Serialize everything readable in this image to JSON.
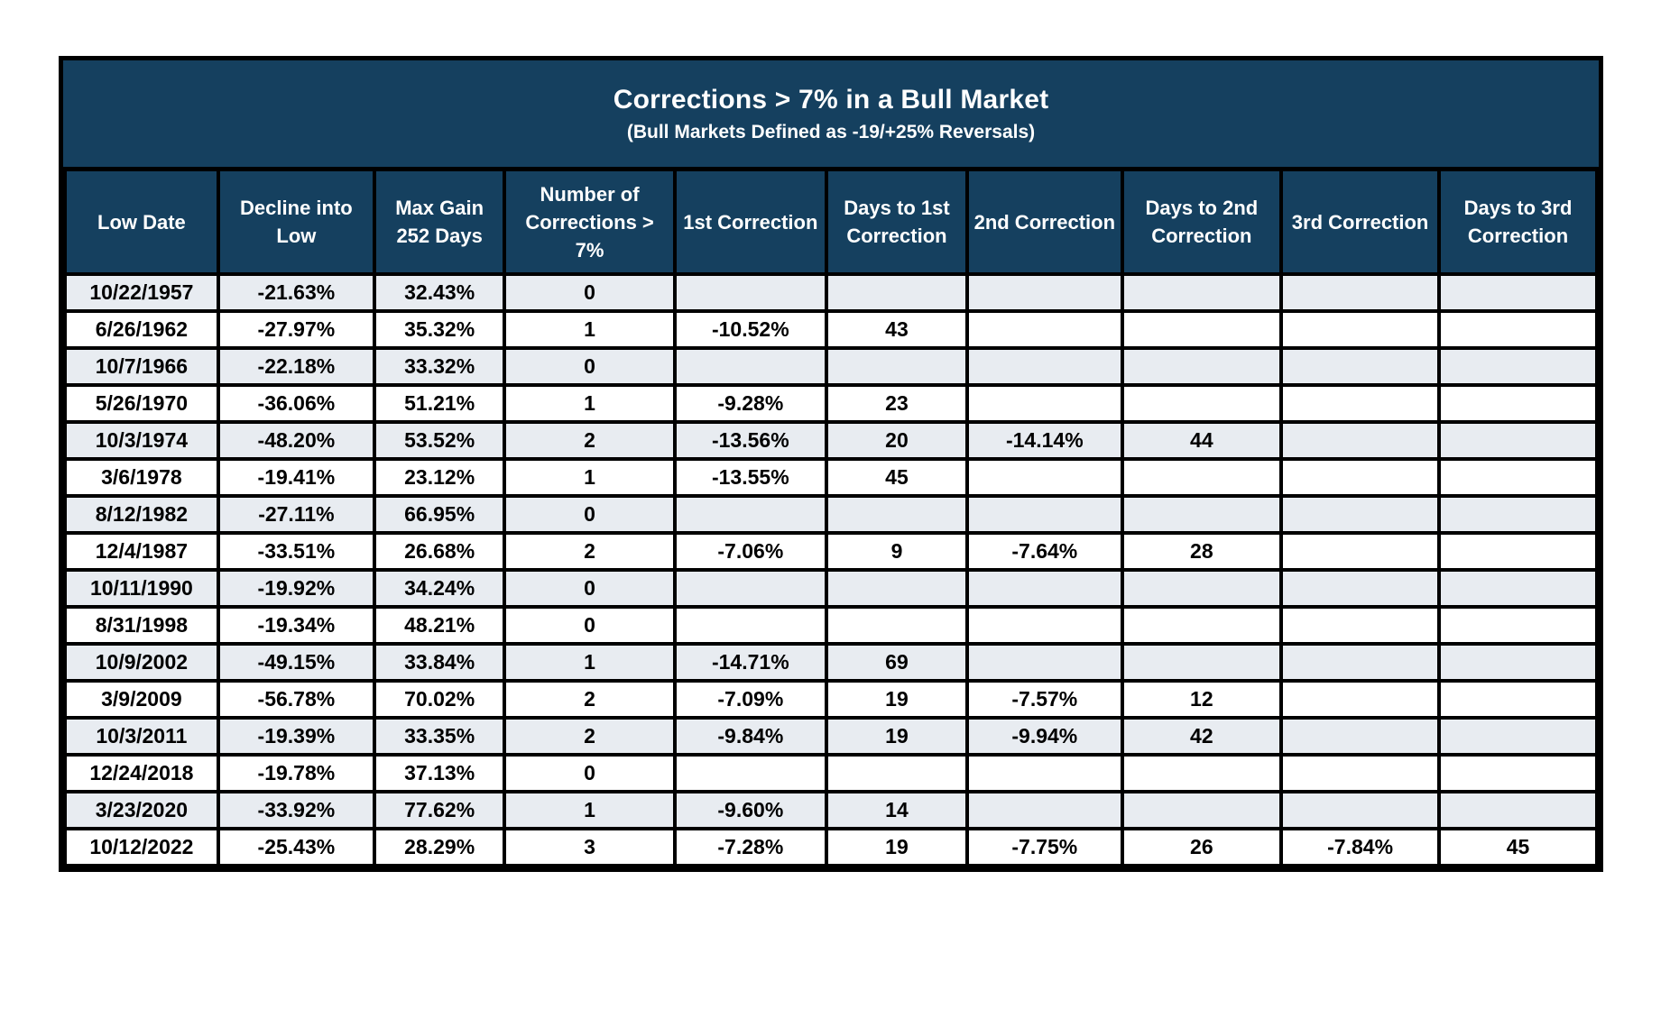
{
  "title": "Corrections > 7% in a Bull Market",
  "subtitle": "(Bull Markets Defined as -19/+25% Reversals)",
  "colors": {
    "header_bg": "#15405f",
    "stripe_bg": "#e8ecf1",
    "row_bg": "#ffffff",
    "border": "#000000",
    "header_text": "#ffffff",
    "cell_text": "#000000"
  },
  "chart_data": {
    "type": "table",
    "title": "Corrections > 7% in a Bull Market",
    "subtitle": "(Bull Markets Defined as -19/+25% Reversals)",
    "columns": [
      "Low Date",
      "Decline into Low",
      "Max Gain 252 Days",
      "Number of Corrections > 7%",
      "1st Correction",
      "Days to 1st Correction",
      "2nd Correction",
      "Days to 2nd Correction",
      "3rd Correction",
      "Days to 3rd Correction"
    ],
    "rows": [
      [
        "10/22/1957",
        "-21.63%",
        "32.43%",
        "0",
        "",
        "",
        "",
        "",
        "",
        ""
      ],
      [
        "6/26/1962",
        "-27.97%",
        "35.32%",
        "1",
        "-10.52%",
        "43",
        "",
        "",
        "",
        ""
      ],
      [
        "10/7/1966",
        "-22.18%",
        "33.32%",
        "0",
        "",
        "",
        "",
        "",
        "",
        ""
      ],
      [
        "5/26/1970",
        "-36.06%",
        "51.21%",
        "1",
        "-9.28%",
        "23",
        "",
        "",
        "",
        ""
      ],
      [
        "10/3/1974",
        "-48.20%",
        "53.52%",
        "2",
        "-13.56%",
        "20",
        "-14.14%",
        "44",
        "",
        ""
      ],
      [
        "3/6/1978",
        "-19.41%",
        "23.12%",
        "1",
        "-13.55%",
        "45",
        "",
        "",
        "",
        ""
      ],
      [
        "8/12/1982",
        "-27.11%",
        "66.95%",
        "0",
        "",
        "",
        "",
        "",
        "",
        ""
      ],
      [
        "12/4/1987",
        "-33.51%",
        "26.68%",
        "2",
        "-7.06%",
        "9",
        "-7.64%",
        "28",
        "",
        ""
      ],
      [
        "10/11/1990",
        "-19.92%",
        "34.24%",
        "0",
        "",
        "",
        "",
        "",
        "",
        ""
      ],
      [
        "8/31/1998",
        "-19.34%",
        "48.21%",
        "0",
        "",
        "",
        "",
        "",
        "",
        ""
      ],
      [
        "10/9/2002",
        "-49.15%",
        "33.84%",
        "1",
        "-14.71%",
        "69",
        "",
        "",
        "",
        ""
      ],
      [
        "3/9/2009",
        "-56.78%",
        "70.02%",
        "2",
        "-7.09%",
        "19",
        "-7.57%",
        "12",
        "",
        ""
      ],
      [
        "10/3/2011",
        "-19.39%",
        "33.35%",
        "2",
        "-9.84%",
        "19",
        "-9.94%",
        "42",
        "",
        ""
      ],
      [
        "12/24/2018",
        "-19.78%",
        "37.13%",
        "0",
        "",
        "",
        "",
        "",
        "",
        ""
      ],
      [
        "3/23/2020",
        "-33.92%",
        "77.62%",
        "1",
        "-9.60%",
        "14",
        "",
        "",
        "",
        ""
      ],
      [
        "10/12/2022",
        "-25.43%",
        "28.29%",
        "3",
        "-7.28%",
        "19",
        "-7.75%",
        "26",
        "-7.84%",
        "45"
      ]
    ]
  }
}
